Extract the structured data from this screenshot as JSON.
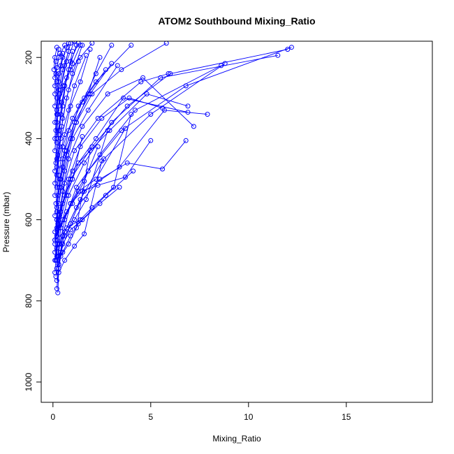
{
  "chart_data": {
    "type": "scatter",
    "title": "ATOM2 Southbound Mixing_Ratio",
    "xlabel": "Mixing_Ratio",
    "ylabel": "Pressure (mbar)",
    "xlim": [
      -0.6,
      19.4
    ],
    "ylim": [
      1050,
      160
    ],
    "y_reversed": true,
    "x_ticks": [
      0,
      5,
      10,
      15
    ],
    "y_ticks": [
      200,
      400,
      600,
      800,
      1000
    ],
    "x_tick_labels": [
      "0",
      "5",
      "10",
      "15"
    ],
    "y_tick_labels": [
      "200",
      "400",
      "600",
      "800",
      "1000"
    ],
    "grid": false,
    "legend": "none",
    "marker": "open-circle",
    "color": "#0000ff",
    "series": [
      {
        "x": [
          0.2,
          0.3,
          0.5,
          0.9,
          1.8,
          3.5,
          6.8,
          12.2
        ],
        "y": [
          770,
          710,
          640,
          560,
          480,
          380,
          270,
          175
        ]
      },
      {
        "x": [
          0.15,
          0.25,
          0.4,
          0.8,
          1.6,
          3.0,
          5.5,
          11.5
        ],
        "y": [
          740,
          690,
          620,
          540,
          460,
          360,
          250,
          195
        ]
      },
      {
        "x": [
          0.2,
          0.35,
          0.6,
          1.2,
          2.4,
          4.2,
          8.6
        ],
        "y": [
          720,
          660,
          600,
          520,
          440,
          330,
          220
        ]
      },
      {
        "x": [
          0.1,
          0.2,
          0.4,
          0.9,
          2.0,
          3.8,
          6.0,
          12.0
        ],
        "y": [
          700,
          650,
          580,
          500,
          420,
          320,
          240,
          180
        ]
      },
      {
        "x": [
          0.25,
          0.3,
          0.6,
          1.4,
          2.6,
          5.0,
          8.8
        ],
        "y": [
          780,
          720,
          630,
          550,
          450,
          340,
          215
        ]
      },
      {
        "x": [
          0.2,
          0.4,
          0.9,
          1.6,
          3.4,
          5.7,
          7.9
        ],
        "y": [
          750,
          680,
          610,
          530,
          470,
          330,
          340
        ]
      },
      {
        "x": [
          0.1,
          0.2,
          0.5,
          1.0,
          2.2,
          3.6,
          6.9
        ],
        "y": [
          730,
          670,
          560,
          480,
          400,
          300,
          335
        ]
      },
      {
        "x": [
          0.3,
          0.5,
          1.2,
          2.4,
          3.8,
          5.6,
          6.8
        ],
        "y": [
          710,
          640,
          570,
          500,
          460,
          475,
          405
        ]
      },
      {
        "x": [
          0.2,
          0.3,
          0.7,
          1.3,
          2.9,
          4.8,
          6.9
        ],
        "y": [
          690,
          620,
          540,
          460,
          380,
          290,
          320
        ]
      },
      {
        "x": [
          0.15,
          0.25,
          0.5,
          0.8,
          1.5,
          2.8,
          4.6,
          7.2
        ],
        "y": [
          700,
          610,
          530,
          450,
          370,
          290,
          250,
          370
        ]
      },
      {
        "x": [
          0.1,
          0.3,
          0.6,
          1.1,
          2.3,
          4.5,
          5.9
        ],
        "y": [
          660,
          600,
          510,
          430,
          350,
          260,
          240
        ]
      },
      {
        "x": [
          0.2,
          0.4,
          0.8,
          1.4,
          2.5,
          3.9,
          5.6
        ],
        "y": [
          640,
          580,
          500,
          420,
          350,
          300,
          325
        ]
      },
      {
        "x": [
          0.1,
          0.2,
          0.4,
          0.7,
          1.2,
          2.0,
          3.5,
          5.8
        ],
        "y": [
          680,
          600,
          520,
          440,
          360,
          290,
          230,
          165
        ]
      },
      {
        "x": [
          0.2,
          0.3,
          0.6,
          1.0,
          1.8,
          3.3
        ],
        "y": [
          620,
          560,
          480,
          400,
          330,
          220
        ]
      },
      {
        "x": [
          0.1,
          0.2,
          0.35,
          0.6,
          1.1,
          1.9,
          3.0
        ],
        "y": [
          650,
          580,
          500,
          430,
          360,
          290,
          215
        ]
      },
      {
        "x": [
          0.2,
          0.25,
          0.5,
          0.9,
          1.3,
          2.2,
          4.0
        ],
        "y": [
          600,
          540,
          470,
          400,
          320,
          260,
          170
        ]
      },
      {
        "x": [
          0.1,
          0.3,
          0.5,
          0.8,
          1.5,
          2.7
        ],
        "y": [
          590,
          520,
          450,
          380,
          310,
          230
        ]
      },
      {
        "x": [
          0.2,
          0.4,
          0.7,
          1.2,
          1.8,
          2.4
        ],
        "y": [
          570,
          500,
          430,
          360,
          290,
          200
        ]
      },
      {
        "x": [
          0.15,
          0.3,
          0.5,
          1.0,
          1.6,
          2.2,
          3.0
        ],
        "y": [
          560,
          490,
          420,
          350,
          300,
          240,
          170
        ]
      },
      {
        "x": [
          0.1,
          0.2,
          0.4,
          0.8,
          1.1,
          1.7
        ],
        "y": [
          540,
          470,
          400,
          330,
          270,
          195
        ]
      },
      {
        "x": [
          0.2,
          0.3,
          0.6,
          0.9,
          1.4,
          1.9
        ],
        "y": [
          520,
          450,
          390,
          320,
          260,
          180
        ]
      },
      {
        "x": [
          0.1,
          0.25,
          0.45,
          0.7,
          1.0,
          1.5
        ],
        "y": [
          510,
          440,
          370,
          300,
          240,
          170
        ]
      },
      {
        "x": [
          0.2,
          0.35,
          0.5,
          0.8,
          1.3
        ],
        "y": [
          490,
          420,
          350,
          280,
          210
        ]
      },
      {
        "x": [
          0.1,
          0.2,
          0.4,
          0.6,
          0.9,
          1.3
        ],
        "y": [
          480,
          400,
          340,
          270,
          210,
          165
        ]
      },
      {
        "x": [
          0.15,
          0.3,
          0.5,
          0.7,
          1.0
        ],
        "y": [
          460,
          390,
          320,
          250,
          185
        ]
      },
      {
        "x": [
          0.2,
          0.3,
          0.45,
          0.8,
          1.2
        ],
        "y": [
          450,
          380,
          310,
          230,
          170
        ]
      },
      {
        "x": [
          0.1,
          0.2,
          0.35,
          0.6,
          0.9
        ],
        "y": [
          430,
          360,
          290,
          220,
          165
        ]
      },
      {
        "x": [
          0.2,
          0.25,
          0.4,
          0.7,
          1.1
        ],
        "y": [
          410,
          340,
          280,
          210,
          160
        ]
      },
      {
        "x": [
          0.1,
          0.2,
          0.3,
          0.5,
          0.8
        ],
        "y": [
          400,
          330,
          260,
          200,
          165
        ]
      },
      {
        "x": [
          0.15,
          0.3,
          0.5,
          0.9,
          1.4,
          2.0
        ],
        "y": [
          380,
          320,
          270,
          230,
          200,
          165
        ]
      },
      {
        "x": [
          0.1,
          0.2,
          0.3,
          0.5
        ],
        "y": [
          360,
          300,
          240,
          190
        ]
      },
      {
        "x": [
          0.2,
          0.3,
          0.5,
          0.8
        ],
        "y": [
          340,
          280,
          230,
          185
        ]
      },
      {
        "x": [
          0.1,
          0.2,
          0.4,
          0.7
        ],
        "y": [
          320,
          260,
          220,
          175
        ]
      },
      {
        "x": [
          0.3,
          0.6,
          1.0,
          1.4
        ],
        "y": [
          310,
          270,
          215,
          170
        ]
      },
      {
        "x": [
          0.1,
          0.15,
          0.3,
          0.6
        ],
        "y": [
          290,
          240,
          200,
          170
        ]
      },
      {
        "x": [
          0.1,
          0.2,
          0.35
        ],
        "y": [
          270,
          225,
          190
        ]
      },
      {
        "x": [
          0.1,
          0.15,
          0.3
        ],
        "y": [
          250,
          210,
          180
        ]
      },
      {
        "x": [
          0.05,
          0.1,
          0.2
        ],
        "y": [
          230,
          200,
          175
        ]
      },
      {
        "x": [
          0.4,
          0.9,
          1.5,
          2.3,
          3.7,
          5.0
        ],
        "y": [
          620,
          560,
          530,
          515,
          495,
          405
        ]
      },
      {
        "x": [
          0.3,
          0.7,
          1.4,
          2.0,
          3.1,
          4.0
        ],
        "y": [
          660,
          620,
          600,
          570,
          520,
          340
        ]
      },
      {
        "x": [
          0.2,
          0.5,
          0.9,
          1.3,
          2.4,
          3.4
        ],
        "y": [
          700,
          680,
          640,
          610,
          560,
          520
        ]
      },
      {
        "x": [
          0.3,
          0.6,
          1.1,
          1.6,
          2.5
        ],
        "y": [
          730,
          700,
          665,
          635,
          455
        ]
      },
      {
        "x": [
          0.2,
          0.4,
          0.8,
          1.2,
          1.9
        ],
        "y": [
          720,
          690,
          660,
          620,
          430
        ]
      },
      {
        "x": [
          0.3,
          0.5,
          0.9,
          1.5,
          2.7,
          4.1
        ],
        "y": [
          690,
          660,
          625,
          600,
          540,
          480
        ]
      },
      {
        "x": [
          0.2,
          0.6,
          1.1,
          1.7,
          2.8
        ],
        "y": [
          670,
          640,
          600,
          550,
          380
        ]
      },
      {
        "x": [
          0.1,
          0.3,
          0.7,
          1.3,
          2.2,
          3.7
        ],
        "y": [
          650,
          620,
          580,
          530,
          500,
          375
        ]
      },
      {
        "x": [
          0.2,
          0.5,
          1.0,
          1.6,
          2.3
        ],
        "y": [
          640,
          600,
          560,
          505,
          420
        ]
      },
      {
        "x": [
          0.1,
          0.3,
          0.6,
          1.0,
          1.5
        ],
        "y": [
          630,
          590,
          540,
          500,
          395
        ]
      }
    ]
  }
}
